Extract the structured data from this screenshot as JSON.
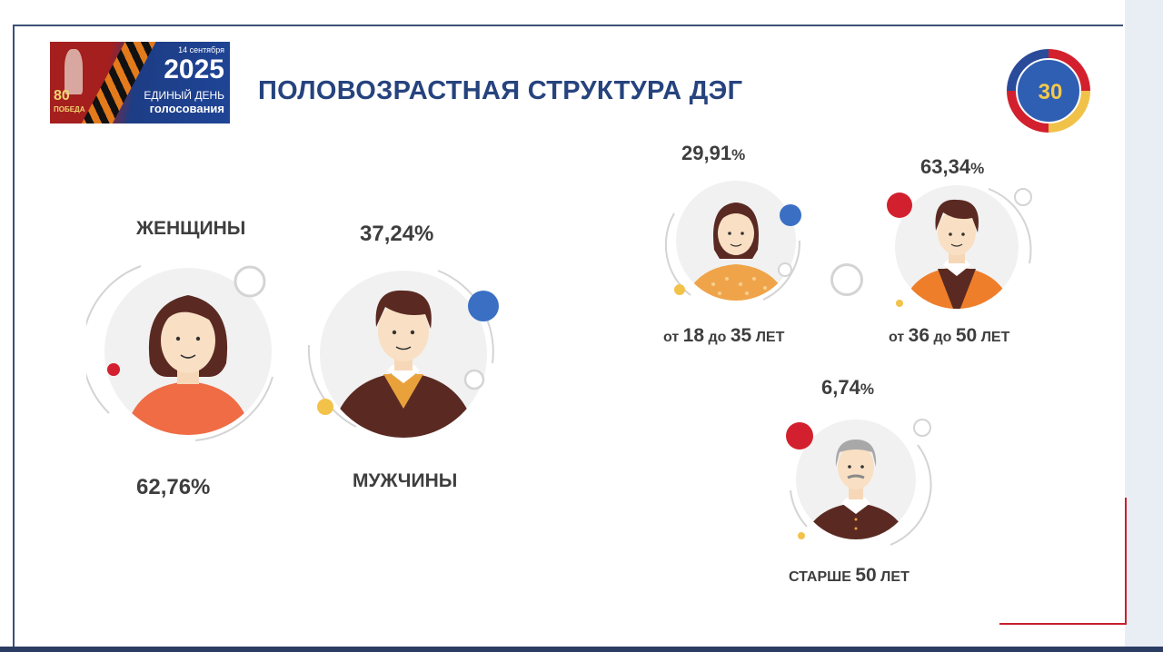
{
  "banner": {
    "date": "14 сентября",
    "year": "2025",
    "line1": "ЕДИНЫЙ ДЕНЬ",
    "line2": "голосования",
    "victory": "80",
    "victory_sub": "ПОБЕДА"
  },
  "title": "ПОЛОВОЗРАСТНАЯ СТРУКТУРА ДЭГ",
  "emblem": {
    "number": "30"
  },
  "gender": {
    "women": {
      "label": "ЖЕНЩИНЫ",
      "value": "62,76%"
    },
    "men": {
      "label": "МУЖЧИНЫ",
      "value": "37,24%"
    }
  },
  "age": {
    "g1": {
      "value_num": "29,91",
      "value_pct": "%",
      "pre": "от",
      "a": "18",
      "mid": "до",
      "b": "35",
      "post": "ЛЕТ"
    },
    "g2": {
      "value_num": "63,34",
      "value_pct": "%",
      "pre": "от",
      "a": "36",
      "mid": "до",
      "b": "50",
      "post": "ЛЕТ"
    },
    "g3": {
      "value_num": "6,74",
      "value_pct": "%",
      "pre": "СТАРШЕ",
      "a": "50",
      "post": "ЛЕТ"
    }
  },
  "colors": {
    "title": "#26437e",
    "red_dot": "#d3202e",
    "blue_dot": "#3a6fc4",
    "yellow_dot": "#f3c24a",
    "female_shirt": "#ef6c45",
    "male_vest": "#5a2a22",
    "male_collar": "#e9a23b"
  }
}
